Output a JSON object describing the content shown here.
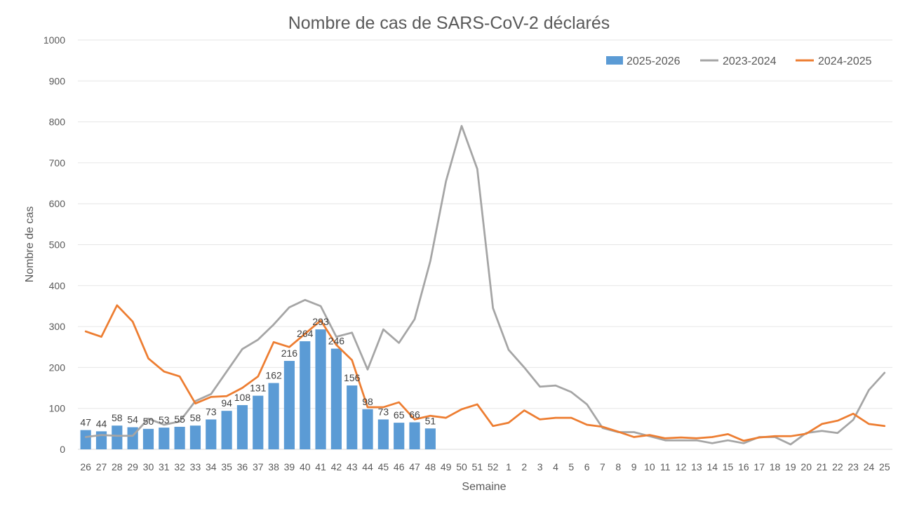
{
  "chart_data": {
    "type": "bar",
    "title": "Nombre de cas de SARS-CoV-2 déclarés",
    "xlabel": "Semaine",
    "ylabel": "Nombre de cas",
    "ylim": [
      0,
      1000
    ],
    "yticks": [
      0,
      100,
      200,
      300,
      400,
      500,
      600,
      700,
      800,
      900,
      1000
    ],
    "grid": true,
    "legend_position": "top-right",
    "categories": [
      "26",
      "27",
      "28",
      "29",
      "30",
      "31",
      "32",
      "33",
      "34",
      "35",
      "36",
      "37",
      "38",
      "39",
      "40",
      "41",
      "42",
      "43",
      "44",
      "45",
      "46",
      "47",
      "48",
      "49",
      "50",
      "51",
      "52",
      "1",
      "2",
      "3",
      "4",
      "5",
      "6",
      "7",
      "8",
      "9",
      "10",
      "11",
      "12",
      "13",
      "14",
      "15",
      "16",
      "17",
      "18",
      "19",
      "20",
      "21",
      "22",
      "23",
      "24",
      "25"
    ],
    "series": [
      {
        "name": "2025-2026",
        "type": "bar",
        "color": "#5b9bd5",
        "data_labels": true,
        "values": [
          47,
          44,
          58,
          54,
          50,
          53,
          55,
          58,
          73,
          94,
          108,
          131,
          162,
          216,
          264,
          293,
          246,
          156,
          98,
          73,
          65,
          66,
          51,
          null,
          null,
          null,
          null,
          null,
          null,
          null,
          null,
          null,
          null,
          null,
          null,
          null,
          null,
          null,
          null,
          null,
          null,
          null,
          null,
          null,
          null,
          null,
          null,
          null,
          null,
          null,
          null,
          null
        ]
      },
      {
        "name": "2023-2024",
        "type": "line",
        "color": "#a5a5a5",
        "values": [
          30,
          35,
          33,
          33,
          75,
          60,
          68,
          118,
          135,
          190,
          245,
          268,
          305,
          347,
          365,
          350,
          275,
          285,
          195,
          293,
          260,
          318,
          460,
          655,
          790,
          685,
          345,
          243,
          200,
          153,
          156,
          140,
          110,
          52,
          42,
          42,
          32,
          22,
          22,
          22,
          15,
          22,
          15,
          30,
          30,
          12,
          40,
          45,
          40,
          72,
          145,
          187
        ]
      },
      {
        "name": "2024-2025",
        "type": "line",
        "color": "#ed7d31",
        "values": [
          288,
          275,
          352,
          312,
          222,
          190,
          178,
          112,
          128,
          130,
          150,
          178,
          262,
          250,
          282,
          315,
          255,
          218,
          103,
          103,
          115,
          73,
          82,
          77,
          98,
          110,
          57,
          65,
          95,
          73,
          77,
          77,
          60,
          55,
          43,
          30,
          35,
          27,
          29,
          27,
          30,
          37,
          21,
          29,
          32,
          32,
          38,
          62,
          70,
          87,
          62,
          57
        ]
      }
    ]
  }
}
